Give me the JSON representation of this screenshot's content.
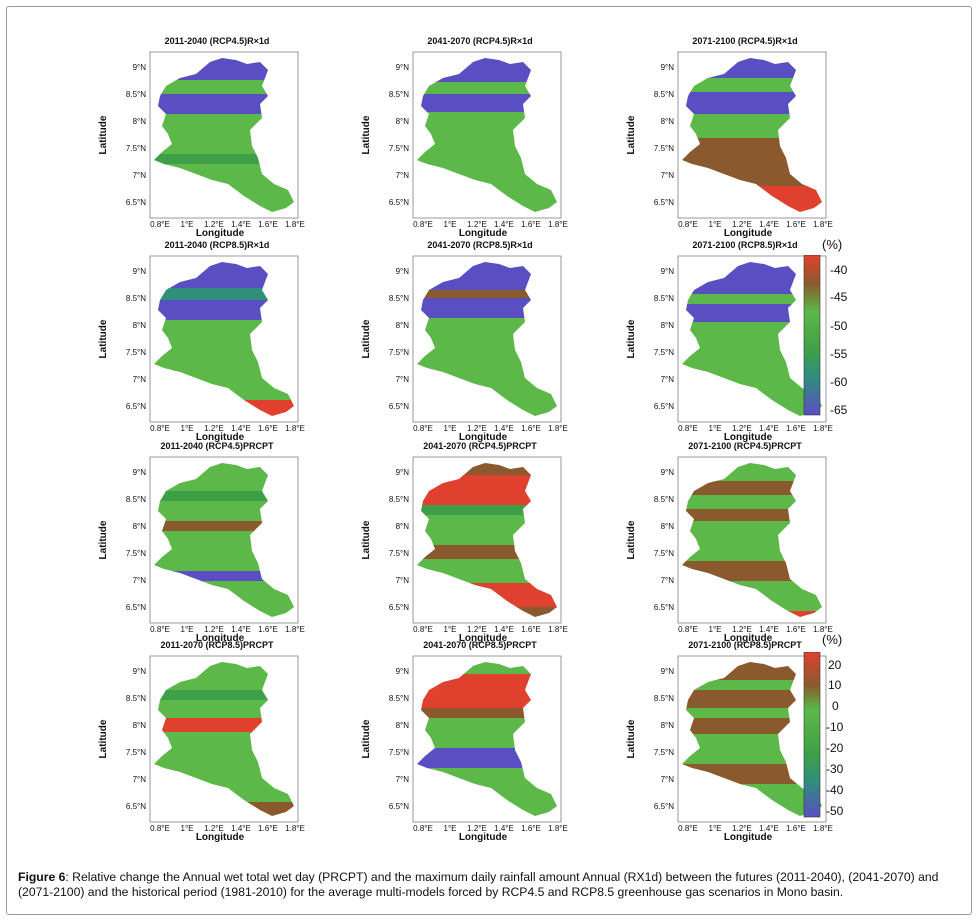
{
  "figure": {
    "caption_label": "Figure 6",
    "caption_text": ": Relative change the Annual wet total wet day (PRCPT) and the maximum daily rainfall amount Annual (RX1d) between the futures (2011-2040), (2041-2070) and (2071-2100) and the historical period (1981-2010) for the average multi-models forced by RCP4.5 and RCP8.5 greenhouse gas scenarios in Mono basin."
  },
  "axes": {
    "xlabel": "Longitude",
    "ylabel": "Latitude",
    "x_ticks": [
      "0.8°E",
      "1°E",
      "1.2°E",
      "1.4°E",
      "1.6°E",
      "1.8°E"
    ],
    "y_ticks": [
      "9°N",
      "8.5°N",
      "8°N",
      "7.5°N",
      "7°N",
      "6.5°N"
    ]
  },
  "panels": [
    {
      "title": "2011-2040 (RCP4.5)R×1d"
    },
    {
      "title": "2041-2070 (RCP4.5)R×1d"
    },
    {
      "title": "2071-2100 (RCP4.5)R×1d"
    },
    {
      "title": "2011-2040 (RCP8.5)R×1d"
    },
    {
      "title": "2041-2070 (RCP8.5)R×1d"
    },
    {
      "title": "2071-2100 (RCP8.5)R×1d"
    },
    {
      "title": "2011-2040 (RCP4.5)PRCPT"
    },
    {
      "title": "2041-2070 (RCP4.5)PRCPT"
    },
    {
      "title": "2071-2100 (RCP4.5)PRCPT"
    },
    {
      "title": "2011-2070 (RCP8.5)PRCPT"
    },
    {
      "title": "2041-2070 (RCP8.5)PRCPT"
    },
    {
      "title": "2071-2100 (RCP8.5)PRCPT"
    }
  ],
  "colorbars": [
    {
      "unit": "(%)",
      "labels": [
        "-40",
        "-45",
        "-50",
        "-55",
        "-60",
        "-65"
      ]
    },
    {
      "unit": "(%)",
      "labels": [
        "20",
        "10",
        "0",
        "-10",
        "-20",
        "-30",
        "-40",
        "-50"
      ]
    }
  ],
  "colors": {
    "red": "#e0412f",
    "brown": "#8a5a2e",
    "green": "#5cb848",
    "darkgreen": "#3f9f48",
    "teal": "#2f8f7a",
    "blue": "#5a4fc2"
  }
}
